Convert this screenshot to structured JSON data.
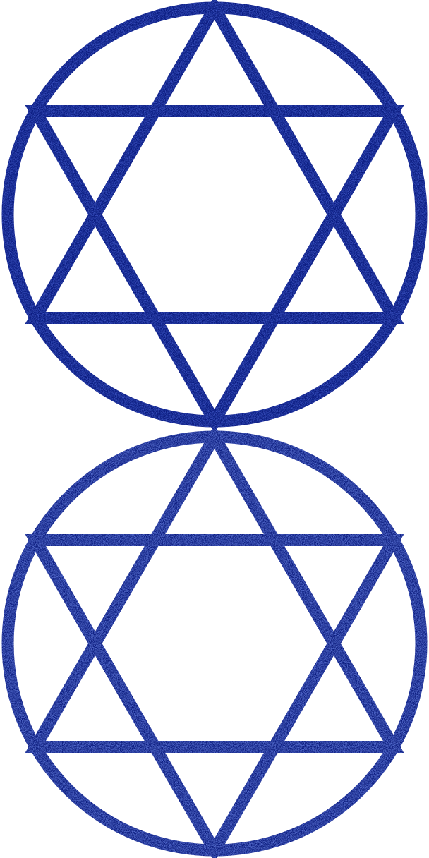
{
  "emblems": [
    {
      "id": "top",
      "icon": "hexagram-in-circle-icon",
      "stroke_color": "#0d1a80",
      "highlight_color": "#1e32c8"
    },
    {
      "id": "bottom",
      "icon": "hexagram-in-circle-icon",
      "stroke_color": "#0d1a80",
      "highlight_color": "#2a44e0"
    }
  ]
}
